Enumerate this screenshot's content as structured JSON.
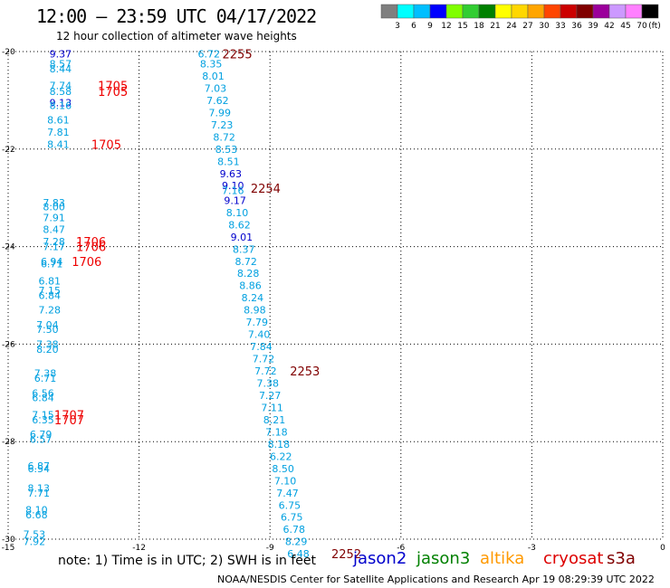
{
  "header": {
    "title": "12:00 – 23:59 UTC 04/17/2022",
    "subtitle": "12 hour collection of altimeter wave heights"
  },
  "colorbar": {
    "colors": [
      "#7f7f7f",
      "#00ffff",
      "#00bfff",
      "#0000ff",
      "#80ff00",
      "#32cd32",
      "#008000",
      "#ffff00",
      "#ffd700",
      "#ffa500",
      "#ff4500",
      "#cc0000",
      "#800000",
      "#9b009b",
      "#cc99ff",
      "#ff80ff",
      "#000000"
    ],
    "labels": [
      "3",
      "6",
      "9",
      "12",
      "15",
      "18",
      "21",
      "24",
      "27",
      "30",
      "33",
      "36",
      "39",
      "42",
      "45",
      "70"
    ],
    "unit": "(ft)"
  },
  "footer": {
    "note": "note:  1) Time is in UTC;  2) SWH is in feet",
    "credit": "NOAA/NESDIS Center for Satellite Applications and Research    Apr 19 08:29:39 UTC 2022",
    "satellites": [
      {
        "label": "jason2",
        "color": "#0000cc"
      },
      {
        "label": "jason3",
        "color": "#008000"
      },
      {
        "label": "altika",
        "color": "#ff9900"
      },
      {
        "label": "cryosat",
        "color": "#dd0000"
      },
      {
        "label": "s3a",
        "color": "#800000"
      }
    ]
  },
  "chart_data": {
    "type": "scatter",
    "title": "12 hour collection of altimeter wave heights",
    "xlim": [
      -15,
      0
    ],
    "ylim": [
      -30,
      -20
    ],
    "xticks": [
      "-15",
      "-12",
      "-9",
      "-6",
      "-3",
      "0"
    ],
    "yticks": [
      "-20",
      "-22",
      "-24",
      "-26",
      "-28",
      "-30"
    ],
    "grid": true,
    "tracks": [
      {
        "color": "#00a0e0",
        "points": [
          {
            "x": -13.8,
            "y": -20.05,
            "label": "9.37",
            "c": "#0000cc"
          },
          {
            "x": -13.8,
            "y": -20.25,
            "label": "8.57"
          },
          {
            "x": -13.8,
            "y": -20.35,
            "label": "8.44"
          },
          {
            "x": -13.8,
            "y": -20.7,
            "label": "7.74"
          },
          {
            "x": -13.8,
            "y": -20.82,
            "label": "8.58"
          },
          {
            "x": -13.8,
            "y": -21.05,
            "label": "9.13",
            "c": "#0000cc"
          },
          {
            "x": -13.8,
            "y": -21.1,
            "label": "8.16"
          },
          {
            "x": -13.85,
            "y": -21.4,
            "label": "8.61"
          },
          {
            "x": -13.85,
            "y": -21.65,
            "label": "7.81"
          },
          {
            "x": -13.85,
            "y": -21.9,
            "label": "8.41"
          },
          {
            "x": -13.95,
            "y": -23.1,
            "label": "7.83"
          },
          {
            "x": -13.95,
            "y": -23.18,
            "label": "8.00"
          },
          {
            "x": -13.95,
            "y": -23.4,
            "label": "7.91"
          },
          {
            "x": -13.95,
            "y": -23.65,
            "label": "8.47"
          },
          {
            "x": -13.95,
            "y": -23.9,
            "label": "7.28"
          },
          {
            "x": -13.95,
            "y": -24.0,
            "label": "7.17"
          },
          {
            "x": -14.0,
            "y": -24.3,
            "label": "6.94"
          },
          {
            "x": -14.0,
            "y": -24.35,
            "label": "6.71"
          },
          {
            "x": -14.05,
            "y": -24.7,
            "label": "6.81"
          },
          {
            "x": -14.05,
            "y": -24.9,
            "label": "7.15"
          },
          {
            "x": -14.05,
            "y": -25.0,
            "label": "6.84"
          },
          {
            "x": -14.05,
            "y": -25.3,
            "label": "7.28"
          },
          {
            "x": -14.1,
            "y": -25.6,
            "label": "7.04"
          },
          {
            "x": -14.1,
            "y": -25.7,
            "label": "7.50"
          },
          {
            "x": -14.1,
            "y": -26.0,
            "label": "7.38"
          },
          {
            "x": -14.1,
            "y": -26.1,
            "label": "8.20"
          },
          {
            "x": -14.15,
            "y": -26.6,
            "label": "7.38"
          },
          {
            "x": -14.15,
            "y": -26.7,
            "label": "6.71"
          },
          {
            "x": -14.2,
            "y": -27.0,
            "label": "6.56"
          },
          {
            "x": -14.2,
            "y": -27.1,
            "label": "6.84"
          },
          {
            "x": -14.2,
            "y": -27.45,
            "label": "7.15"
          },
          {
            "x": -14.2,
            "y": -27.55,
            "label": "6.35"
          },
          {
            "x": -14.25,
            "y": -27.85,
            "label": "6.79"
          },
          {
            "x": -14.25,
            "y": -27.95,
            "label": "6.57"
          },
          {
            "x": -14.3,
            "y": -28.5,
            "label": "6.87"
          },
          {
            "x": -14.3,
            "y": -28.55,
            "label": "6.54"
          },
          {
            "x": -14.3,
            "y": -28.95,
            "label": "8.13"
          },
          {
            "x": -14.3,
            "y": -29.05,
            "label": "7.71"
          },
          {
            "x": -14.35,
            "y": -29.4,
            "label": "8.10"
          },
          {
            "x": -14.35,
            "y": -29.5,
            "label": "6.68"
          },
          {
            "x": -14.4,
            "y": -29.9,
            "label": "7.53"
          },
          {
            "x": -14.4,
            "y": -30.05,
            "label": "7.92"
          }
        ]
      },
      {
        "color": "#00a0e0",
        "points": [
          {
            "x": -10.4,
            "y": -20.05,
            "label": "6.72"
          },
          {
            "x": -10.35,
            "y": -20.25,
            "label": "8.35"
          },
          {
            "x": -10.3,
            "y": -20.5,
            "label": "8.01"
          },
          {
            "x": -10.25,
            "y": -20.75,
            "label": "7.03"
          },
          {
            "x": -10.2,
            "y": -21.0,
            "label": "7.62"
          },
          {
            "x": -10.15,
            "y": -21.25,
            "label": "7.99"
          },
          {
            "x": -10.1,
            "y": -21.5,
            "label": "7.23"
          },
          {
            "x": -10.05,
            "y": -21.75,
            "label": "8.72"
          },
          {
            "x": -10.0,
            "y": -22.0,
            "label": "8.53"
          },
          {
            "x": -9.95,
            "y": -22.25,
            "label": "8.51"
          },
          {
            "x": -9.9,
            "y": -22.5,
            "label": "9.63",
            "c": "#0000cc"
          },
          {
            "x": -9.85,
            "y": -22.75,
            "label": "9.10",
            "c": "#0000cc"
          },
          {
            "x": -9.85,
            "y": -22.85,
            "label": "7.16"
          },
          {
            "x": -9.8,
            "y": -23.05,
            "label": "9.17",
            "c": "#0000cc"
          },
          {
            "x": -9.75,
            "y": -23.3,
            "label": "8.10"
          },
          {
            "x": -9.7,
            "y": -23.55,
            "label": "8.62"
          },
          {
            "x": -9.65,
            "y": -23.8,
            "label": "9.01",
            "c": "#0000cc"
          },
          {
            "x": -9.6,
            "y": -24.05,
            "label": "8.37"
          },
          {
            "x": -9.55,
            "y": -24.3,
            "label": "8.72"
          },
          {
            "x": -9.5,
            "y": -24.55,
            "label": "8.28"
          },
          {
            "x": -9.45,
            "y": -24.8,
            "label": "8.86"
          },
          {
            "x": -9.4,
            "y": -25.05,
            "label": "8.24"
          },
          {
            "x": -9.35,
            "y": -25.3,
            "label": "8.98"
          },
          {
            "x": -9.3,
            "y": -25.55,
            "label": "7.79"
          },
          {
            "x": -9.25,
            "y": -25.8,
            "label": "7.40"
          },
          {
            "x": -9.2,
            "y": -26.05,
            "label": "7.84"
          },
          {
            "x": -9.15,
            "y": -26.3,
            "label": "7.72"
          },
          {
            "x": -9.1,
            "y": -26.55,
            "label": "7.72"
          },
          {
            "x": -9.05,
            "y": -26.8,
            "label": "7.38"
          },
          {
            "x": -9.0,
            "y": -27.05,
            "label": "7.27"
          },
          {
            "x": -8.95,
            "y": -27.3,
            "label": "7.11"
          },
          {
            "x": -8.9,
            "y": -27.55,
            "label": "8.21"
          },
          {
            "x": -8.85,
            "y": -27.8,
            "label": "7.18"
          },
          {
            "x": -8.8,
            "y": -28.05,
            "label": "8.18"
          },
          {
            "x": -8.75,
            "y": -28.3,
            "label": "6.22"
          },
          {
            "x": -8.7,
            "y": -28.55,
            "label": "8.50"
          },
          {
            "x": -8.65,
            "y": -28.8,
            "label": "7.10"
          },
          {
            "x": -8.6,
            "y": -29.05,
            "label": "7.47"
          },
          {
            "x": -8.55,
            "y": -29.3,
            "label": "6.75"
          },
          {
            "x": -8.5,
            "y": -29.55,
            "label": "6.75"
          },
          {
            "x": -8.45,
            "y": -29.8,
            "label": "6.78"
          },
          {
            "x": -8.4,
            "y": -30.05,
            "label": "8.29"
          },
          {
            "x": -8.35,
            "y": -30.3,
            "label": "6.48"
          }
        ]
      }
    ],
    "time_labels": [
      {
        "x": -12.6,
        "y": -20.7,
        "label": "1705",
        "color": "#ee0000"
      },
      {
        "x": -12.6,
        "y": -20.82,
        "label": "1705",
        "color": "#ee0000"
      },
      {
        "x": -12.75,
        "y": -21.9,
        "label": "1705",
        "color": "#ee0000"
      },
      {
        "x": -13.1,
        "y": -23.9,
        "label": "1706",
        "color": "#ee0000"
      },
      {
        "x": -13.1,
        "y": -24.0,
        "label": "1706",
        "color": "#ee0000"
      },
      {
        "x": -13.2,
        "y": -24.3,
        "label": "1706",
        "color": "#ee0000"
      },
      {
        "x": -13.6,
        "y": -27.45,
        "label": "1707",
        "color": "#ee0000"
      },
      {
        "x": -13.6,
        "y": -27.55,
        "label": "1707",
        "color": "#ee0000"
      },
      {
        "x": -9.75,
        "y": -20.05,
        "label": "2255",
        "color": "#800000"
      },
      {
        "x": -9.1,
        "y": -22.8,
        "label": "2254",
        "color": "#800000"
      },
      {
        "x": -8.2,
        "y": -26.55,
        "label": "2253",
        "color": "#800000"
      },
      {
        "x": -7.25,
        "y": -30.3,
        "label": "2252",
        "color": "#800000"
      }
    ]
  }
}
